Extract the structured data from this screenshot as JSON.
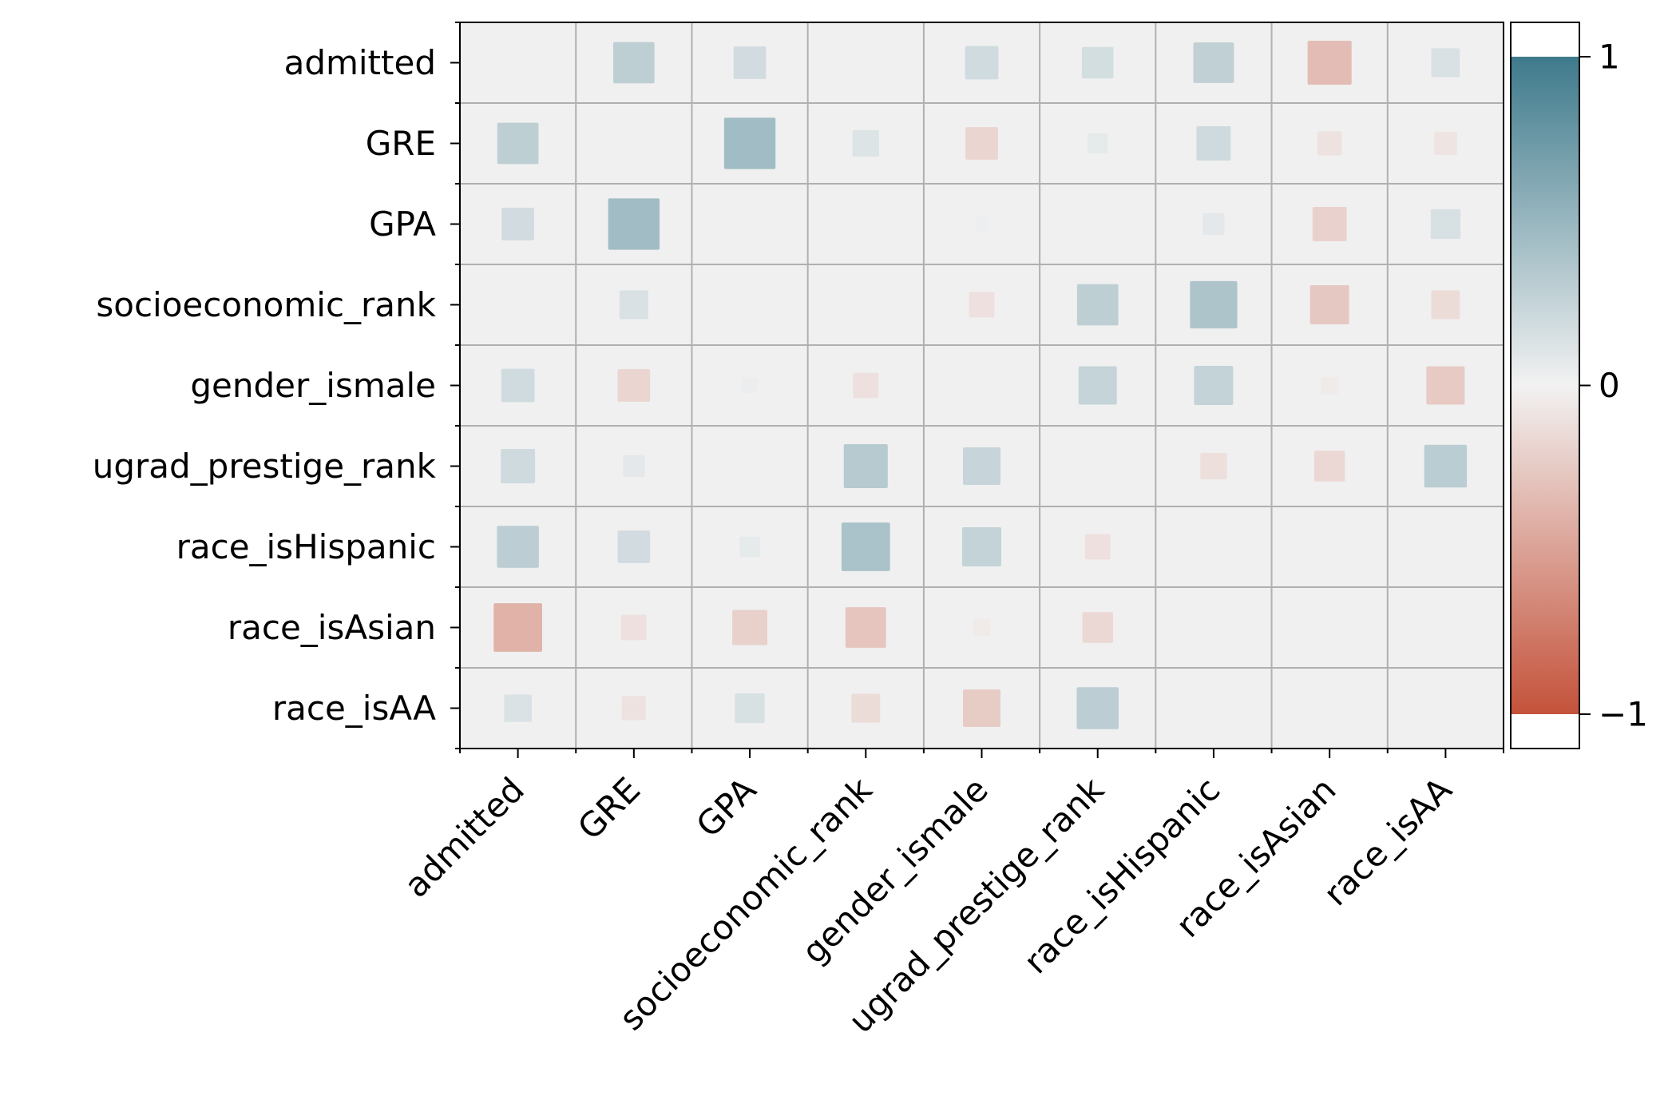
{
  "chart_data": {
    "type": "heatmap",
    "variables": [
      "admitted",
      "GRE",
      "GPA",
      "socioeconomic_rank",
      "gender_ismale",
      "ugrad_prestige_rank",
      "race_isHispanic",
      "race_isAsian",
      "race_isAA"
    ],
    "row_labels": [
      "admitted",
      "GRE",
      "GPA",
      "socioeconomic_rank",
      "gender_ismale",
      "ugrad_prestige_rank",
      "race_isHispanic",
      "race_isAsian",
      "race_isAA"
    ],
    "col_labels": [
      "admitted",
      "GRE",
      "GPA",
      "socioeconomic_rank",
      "gender_ismale",
      "ugrad_prestige_rank",
      "race_isHispanic",
      "race_isAsian",
      "race_isAA"
    ],
    "values": [
      [
        null,
        0.29,
        0.18,
        null,
        0.19,
        0.17,
        0.28,
        -0.33,
        0.14
      ],
      [
        0.29,
        null,
        0.45,
        0.12,
        -0.18,
        0.07,
        0.2,
        -0.1,
        -0.09
      ],
      [
        0.18,
        0.45,
        null,
        0.01,
        0.03,
        null,
        0.08,
        -0.2,
        0.15
      ],
      [
        null,
        0.14,
        0.01,
        null,
        -0.11,
        0.29,
        0.38,
        -0.26,
        -0.14
      ],
      [
        0.19,
        -0.18,
        0.04,
        -0.11,
        null,
        0.25,
        0.26,
        -0.05,
        -0.25
      ],
      [
        0.2,
        0.08,
        null,
        0.33,
        0.24,
        null,
        -0.12,
        -0.16,
        0.31
      ],
      [
        0.3,
        0.18,
        0.07,
        0.4,
        0.26,
        -0.11,
        null,
        null,
        null
      ],
      [
        -0.4,
        -0.11,
        -0.21,
        -0.28,
        -0.05,
        -0.16,
        null,
        null,
        null
      ],
      [
        0.13,
        -0.1,
        0.15,
        -0.14,
        -0.24,
        0.3,
        null,
        null,
        null
      ]
    ],
    "colorbar": {
      "min": -1,
      "max": 1,
      "ticks": [
        1,
        0,
        -1
      ],
      "tick_labels": [
        "1",
        "0",
        "−1"
      ],
      "low_color": "#c4523a",
      "mid_color": "#f2f2f2",
      "high_color": "#3e7a8c"
    },
    "cell_background": "#f0f0f0",
    "grid": true,
    "title": "",
    "xlabel": "",
    "ylabel": ""
  }
}
